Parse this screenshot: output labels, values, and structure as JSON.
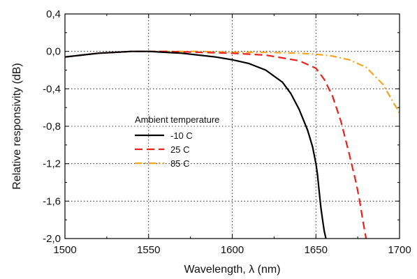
{
  "chart_data": {
    "type": "line",
    "xlabel": "Wavelength, λ (nm)",
    "ylabel": "Relative responsivity (dB)",
    "xlim": [
      1500,
      1700
    ],
    "ylim": [
      -2.0,
      0.4
    ],
    "xticks": [
      "1500",
      "1550",
      "1600",
      "1650",
      "1700"
    ],
    "yticks": [
      "0,4",
      "0,0",
      "-0,4",
      "-0,8",
      "-1,2",
      "-1,6",
      "-2,0"
    ],
    "grid": "dotted vertical and horizontal lines at major ticks",
    "legend": {
      "title": "Ambient temperature",
      "placement": "center-left"
    },
    "series": [
      {
        "name": "-10 C",
        "color": "#000000",
        "dash": "solid",
        "points": [
          [
            1500,
            -0.06
          ],
          [
            1510,
            -0.04
          ],
          [
            1520,
            -0.02
          ],
          [
            1530,
            -0.01
          ],
          [
            1540,
            0.0
          ],
          [
            1550,
            0.0
          ],
          [
            1560,
            -0.01
          ],
          [
            1570,
            -0.02
          ],
          [
            1580,
            -0.04
          ],
          [
            1590,
            -0.06
          ],
          [
            1600,
            -0.09
          ],
          [
            1610,
            -0.13
          ],
          [
            1620,
            -0.2
          ],
          [
            1630,
            -0.33
          ],
          [
            1635,
            -0.45
          ],
          [
            1640,
            -0.62
          ],
          [
            1645,
            -0.84
          ],
          [
            1648,
            -1.02
          ],
          [
            1650,
            -1.2
          ],
          [
            1651,
            -1.32
          ],
          [
            1652,
            -1.5
          ],
          [
            1653,
            -1.67
          ],
          [
            1654,
            -1.8
          ],
          [
            1655,
            -1.92
          ],
          [
            1656,
            -2.0
          ]
        ]
      },
      {
        "name": "25 C",
        "color": "#e8221e",
        "dash": "dashed",
        "points": [
          [
            1500,
            -0.06
          ],
          [
            1510,
            -0.04
          ],
          [
            1520,
            -0.02
          ],
          [
            1530,
            -0.01
          ],
          [
            1540,
            0.0
          ],
          [
            1560,
            0.0
          ],
          [
            1580,
            -0.01
          ],
          [
            1600,
            -0.02
          ],
          [
            1620,
            -0.04
          ],
          [
            1640,
            -0.1
          ],
          [
            1650,
            -0.18
          ],
          [
            1655,
            -0.3
          ],
          [
            1660,
            -0.48
          ],
          [
            1665,
            -0.75
          ],
          [
            1670,
            -1.1
          ],
          [
            1674,
            -1.4
          ],
          [
            1676,
            -1.58
          ],
          [
            1678,
            -1.8
          ],
          [
            1680,
            -2.0
          ]
        ]
      },
      {
        "name": "85 C",
        "color": "#f5a623",
        "dash": "dash-dot",
        "points": [
          [
            1500,
            -0.06
          ],
          [
            1510,
            -0.04
          ],
          [
            1520,
            -0.02
          ],
          [
            1530,
            -0.01
          ],
          [
            1540,
            0.0
          ],
          [
            1560,
            0.0
          ],
          [
            1580,
            0.0
          ],
          [
            1600,
            -0.01
          ],
          [
            1620,
            -0.01
          ],
          [
            1640,
            -0.02
          ],
          [
            1650,
            -0.03
          ],
          [
            1660,
            -0.05
          ],
          [
            1670,
            -0.09
          ],
          [
            1680,
            -0.17
          ],
          [
            1690,
            -0.35
          ],
          [
            1700,
            -0.66
          ]
        ]
      }
    ]
  }
}
